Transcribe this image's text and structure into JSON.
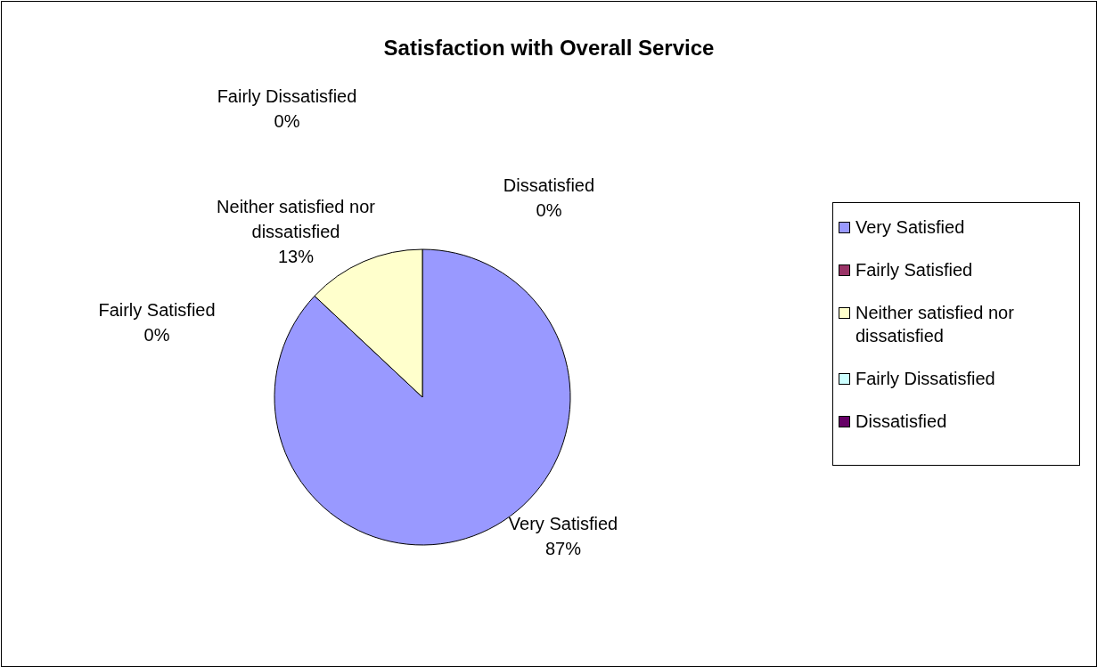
{
  "chart_data": {
    "type": "pie",
    "title": "Satisfaction with Overall Service",
    "categories": [
      "Very Satisfied",
      "Fairly Satisfied",
      "Neither satisfied nor dissatisfied",
      "Fairly Dissatisfied",
      "Dissatisfied"
    ],
    "values": [
      87,
      0,
      13,
      0,
      0
    ],
    "value_labels": [
      "87%",
      "0%",
      "13%",
      "0%",
      "0%"
    ],
    "colors": [
      "#9999ff",
      "#993366",
      "#ffffcc",
      "#ccffff",
      "#660066"
    ],
    "legend": "right"
  }
}
